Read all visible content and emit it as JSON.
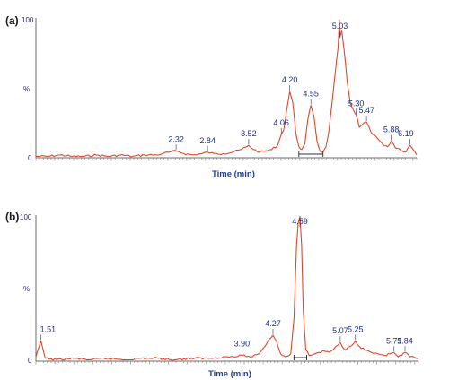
{
  "chart_data": [
    {
      "type": "line",
      "panel_label": "(a)",
      "xlabel": "Time (min)",
      "ylabel": "%",
      "ytick_labels": [
        "0",
        "100"
      ],
      "ylim": [
        0,
        100
      ],
      "xlim": [
        0.0,
        6.3
      ],
      "grid": false,
      "integration_range": [
        4.35,
        4.75
      ],
      "peaks": [
        {
          "label": "2.32",
          "x": 2.32,
          "y": 5
        },
        {
          "label": "2.84",
          "x": 2.84,
          "y": 4
        },
        {
          "label": "3.52",
          "x": 3.52,
          "y": 9
        },
        {
          "label": "4.06",
          "x": 4.06,
          "y": 17
        },
        {
          "label": "4.20",
          "x": 4.2,
          "y": 48
        },
        {
          "label": "4.55",
          "x": 4.55,
          "y": 38
        },
        {
          "label": "5.03",
          "x": 5.03,
          "y": 87
        },
        {
          "label": "5.30",
          "x": 5.3,
          "y": 31
        },
        {
          "label": "5.47",
          "x": 5.47,
          "y": 26
        },
        {
          "label": "5.88",
          "x": 5.88,
          "y": 12
        },
        {
          "label": "6.19",
          "x": 6.19,
          "y": 9
        }
      ],
      "series": [
        {
          "x": [
            0.0,
            0.2,
            0.4,
            0.6,
            0.8,
            1.0,
            1.2,
            1.4,
            1.6,
            1.8,
            2.0,
            2.1,
            2.2,
            2.32,
            2.45,
            2.6,
            2.75,
            2.84,
            2.95,
            3.1,
            3.25,
            3.4,
            3.52,
            3.6,
            3.7,
            3.8,
            3.9,
            4.0,
            4.06,
            4.1,
            4.15,
            4.2,
            4.25,
            4.3,
            4.35,
            4.4,
            4.45,
            4.5,
            4.55,
            4.6,
            4.65,
            4.7,
            4.75,
            4.8,
            4.85,
            4.9,
            4.95,
            5.0,
            5.02,
            5.03,
            5.06,
            5.1,
            5.15,
            5.2,
            5.25,
            5.3,
            5.35,
            5.4,
            5.47,
            5.55,
            5.65,
            5.75,
            5.82,
            5.88,
            5.95,
            6.05,
            6.12,
            6.19,
            6.3
          ],
          "y": [
            1,
            1,
            2,
            1,
            1,
            2,
            1,
            2,
            1,
            2,
            2,
            3,
            4,
            5,
            3,
            2,
            3,
            4,
            3,
            3,
            4,
            6,
            9,
            6,
            4,
            5,
            6,
            9,
            17,
            20,
            35,
            48,
            40,
            18,
            8,
            6,
            10,
            28,
            38,
            30,
            12,
            5,
            4,
            8,
            20,
            40,
            60,
            80,
            100,
            87,
            92,
            78,
            55,
            40,
            35,
            31,
            22,
            24,
            26,
            18,
            14,
            9,
            8,
            12,
            7,
            5,
            4,
            9,
            2
          ]
        }
      ]
    },
    {
      "type": "line",
      "panel_label": "(b)",
      "xlabel": "Time (min)",
      "ylabel": "%",
      "ytick_labels": [
        "0",
        "100"
      ],
      "ylim": [
        0,
        100
      ],
      "xlim": [
        1.45,
        6.0
      ],
      "grid": false,
      "integration_range": [
        4.52,
        4.67
      ],
      "peaks": [
        {
          "label": "1.51",
          "x": 1.51,
          "y": 14
        },
        {
          "label": "3.90",
          "x": 3.9,
          "y": 4
        },
        {
          "label": "4.27",
          "x": 4.27,
          "y": 18
        },
        {
          "label": "4.59",
          "x": 4.59,
          "y": 100
        },
        {
          "label": "5.07",
          "x": 5.07,
          "y": 13
        },
        {
          "label": "5.25",
          "x": 5.25,
          "y": 14
        },
        {
          "label": "5.71",
          "x": 5.71,
          "y": 6
        },
        {
          "label": "5.84",
          "x": 5.84,
          "y": 6
        }
      ],
      "series": [
        {
          "x": [
            1.45,
            1.51,
            1.56,
            1.7,
            1.9,
            2.1,
            2.3,
            2.5,
            2.7,
            2.9,
            3.1,
            3.3,
            3.5,
            3.7,
            3.8,
            3.9,
            4.0,
            4.1,
            4.17,
            4.22,
            4.27,
            4.31,
            4.36,
            4.42,
            4.48,
            4.52,
            4.55,
            4.57,
            4.59,
            4.61,
            4.63,
            4.66,
            4.7,
            4.76,
            4.82,
            4.88,
            4.94,
            5.0,
            5.04,
            5.07,
            5.12,
            5.18,
            5.25,
            5.3,
            5.36,
            5.44,
            5.52,
            5.6,
            5.66,
            5.71,
            5.76,
            5.8,
            5.84,
            5.9,
            6.0
          ],
          "y": [
            3,
            14,
            2,
            1,
            2,
            1,
            2,
            1,
            2,
            2,
            1,
            2,
            2,
            3,
            3,
            4,
            3,
            5,
            10,
            15,
            18,
            14,
            5,
            3,
            5,
            30,
            80,
            96,
            100,
            80,
            35,
            8,
            4,
            5,
            6,
            7,
            6,
            9,
            11,
            13,
            8,
            10,
            14,
            10,
            8,
            6,
            5,
            4,
            5,
            6,
            3,
            4,
            6,
            3,
            2
          ]
        }
      ]
    }
  ]
}
